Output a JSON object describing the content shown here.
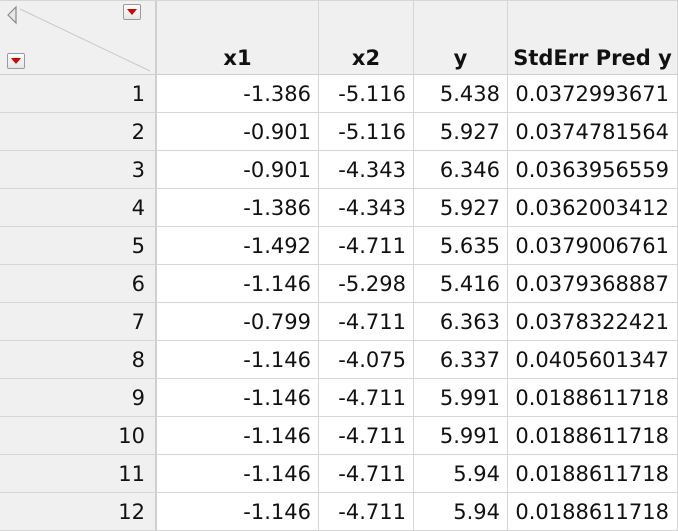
{
  "columns": [
    {
      "key": "x1",
      "label": "x1"
    },
    {
      "key": "x2",
      "label": "x2"
    },
    {
      "key": "y",
      "label": "y"
    },
    {
      "key": "se",
      "label": "StdErr Pred y"
    }
  ],
  "rows": [
    {
      "n": "1",
      "x1": "-1.386",
      "x2": "-5.116",
      "y": "5.438",
      "se": "0.0372993671"
    },
    {
      "n": "2",
      "x1": "-0.901",
      "x2": "-5.116",
      "y": "5.927",
      "se": "0.0374781564"
    },
    {
      "n": "3",
      "x1": "-0.901",
      "x2": "-4.343",
      "y": "6.346",
      "se": "0.0363956559"
    },
    {
      "n": "4",
      "x1": "-1.386",
      "x2": "-4.343",
      "y": "5.927",
      "se": "0.0362003412"
    },
    {
      "n": "5",
      "x1": "-1.492",
      "x2": "-4.711",
      "y": "5.635",
      "se": "0.0379006761"
    },
    {
      "n": "6",
      "x1": "-1.146",
      "x2": "-5.298",
      "y": "5.416",
      "se": "0.0379368887"
    },
    {
      "n": "7",
      "x1": "-0.799",
      "x2": "-4.711",
      "y": "6.363",
      "se": "0.0378322421"
    },
    {
      "n": "8",
      "x1": "-1.146",
      "x2": "-4.075",
      "y": "6.337",
      "se": "0.0405601347"
    },
    {
      "n": "9",
      "x1": "-1.146",
      "x2": "-4.711",
      "y": "5.991",
      "se": "0.0188611718"
    },
    {
      "n": "10",
      "x1": "-1.146",
      "x2": "-4.711",
      "y": "5.991",
      "se": "0.0188611718"
    },
    {
      "n": "11",
      "x1": "-1.146",
      "x2": "-4.711",
      "y": "5.94",
      "se": "0.0188611718"
    },
    {
      "n": "12",
      "x1": "-1.146",
      "x2": "-4.711",
      "y": "5.94",
      "se": "0.0188611718"
    }
  ]
}
